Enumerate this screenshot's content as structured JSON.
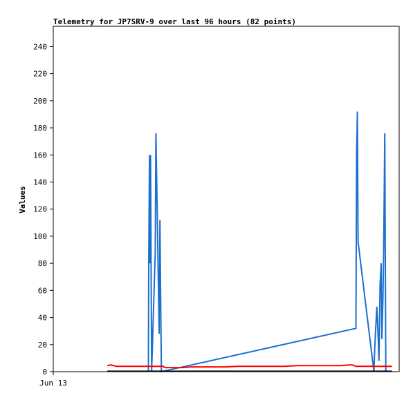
{
  "chart_data": {
    "type": "line",
    "title": "Telemetry for JP7SRV-9 over last 96 hours (82 points)",
    "xlabel": "",
    "ylabel": "Values",
    "ylim": [
      0,
      255
    ],
    "y_ticks": [
      0,
      20,
      40,
      60,
      80,
      100,
      120,
      140,
      160,
      180,
      200,
      220,
      240
    ],
    "x_range_hours": [
      0,
      96
    ],
    "x_ticks": [
      {
        "label": "Jun 13",
        "hour": 0
      }
    ],
    "grid": false,
    "legend": "none",
    "colors": {
      "blue": "#1a6fcf",
      "red": "#ff0000",
      "black": "#000000",
      "frame": "#000000"
    },
    "series": [
      {
        "color": "#1a6fcf",
        "x": [
          26.4,
          26.5,
          26.7,
          26.8,
          27.0,
          27.3,
          28.3,
          28.5,
          29.4,
          29.6,
          29.8,
          30.0,
          84.0,
          84.2,
          84.4,
          84.6,
          89.0,
          89.2,
          89.5,
          89.8,
          90.2,
          90.4,
          90.7,
          91.0,
          91.2,
          91.5,
          91.7,
          92.0,
          92.3
        ],
        "values": [
          0,
          80,
          160,
          80,
          160,
          0,
          88,
          176,
          28,
          112,
          56,
          0,
          32,
          160,
          192,
          96,
          0,
          16,
          32,
          48,
          24,
          8,
          64,
          80,
          24,
          56,
          88,
          176,
          0
        ]
      },
      {
        "color": "#ff0000",
        "x": [
          15.0,
          16.0,
          17.5,
          22.0,
          24.0,
          27.0,
          29.0,
          30.5,
          31.0,
          32.0,
          36.0,
          38.0,
          44.0,
          48.0,
          51.0,
          56.0,
          60.0,
          64.0,
          68.0,
          72.0,
          76.0,
          80.0,
          82.0,
          83.0,
          84.0,
          86.0,
          90.0,
          92.0,
          94.0
        ],
        "values": [
          4.5,
          5,
          4,
          4,
          4,
          4,
          4,
          4,
          3,
          3,
          3,
          3.5,
          3.5,
          3.5,
          4,
          4,
          4,
          4,
          4.5,
          4.5,
          4.5,
          4.5,
          5,
          5,
          4,
          4,
          4,
          4,
          4
        ]
      },
      {
        "color": "#000000",
        "x": [
          15.0,
          94.0
        ],
        "values": [
          0.3,
          0.3
        ]
      }
    ]
  }
}
